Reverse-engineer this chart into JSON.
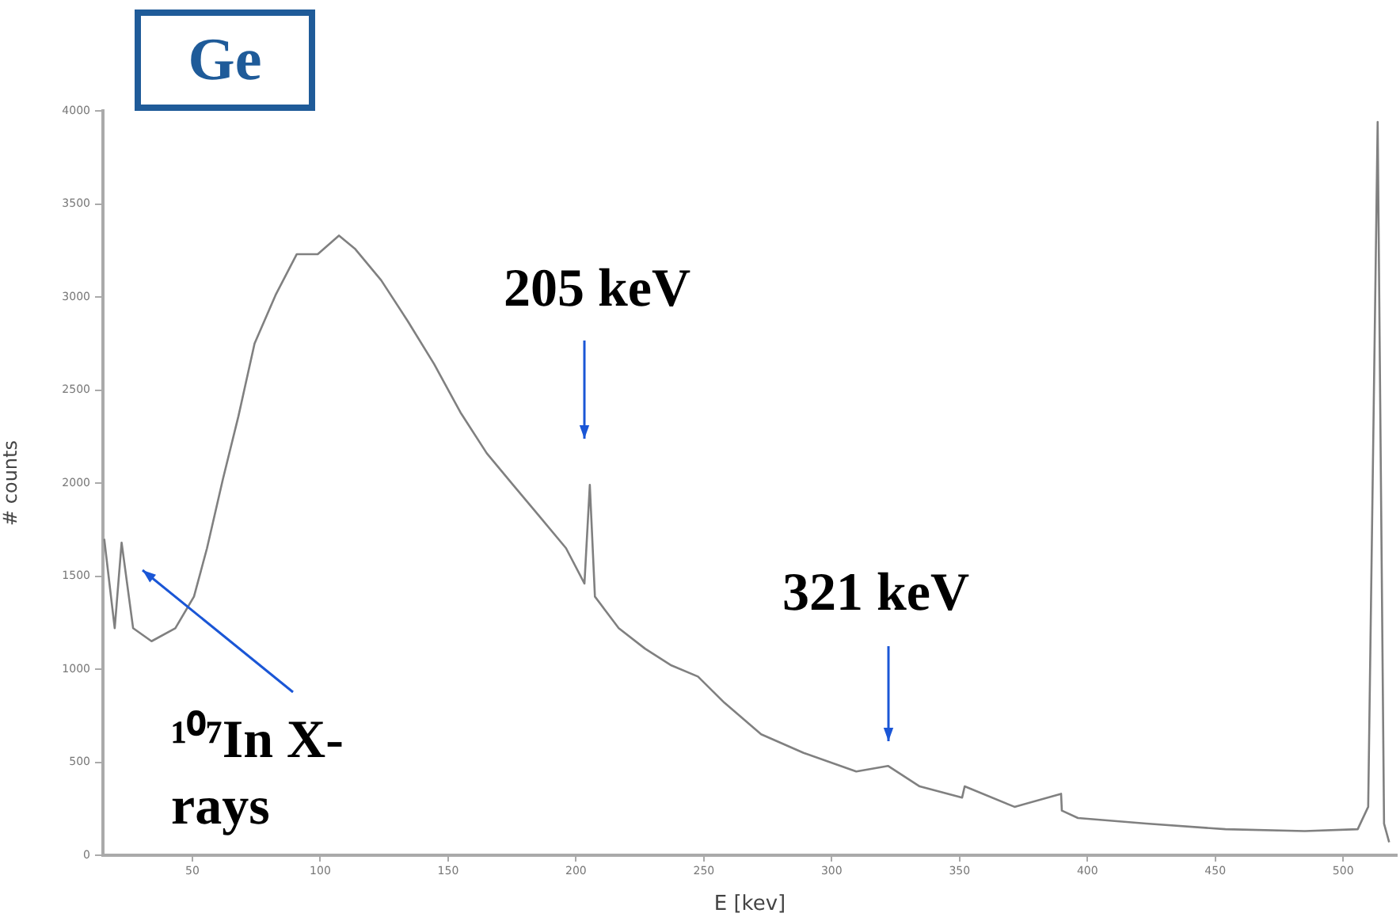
{
  "chart_data": {
    "type": "line",
    "title": "Ge",
    "xlabel": "E [kev]",
    "ylabel": "# counts",
    "color": "#808080",
    "grid": false,
    "legend": false,
    "marker": "none",
    "line_style": "solid",
    "xlim": [
      15,
      521
    ],
    "xticks": [
      50,
      100,
      150,
      200,
      250,
      300,
      350,
      400,
      450,
      500
    ],
    "ylim": [
      0,
      4000
    ],
    "yticks": [
      0,
      500,
      1000,
      1500,
      2000,
      2500,
      3000,
      3500,
      4000
    ],
    "x": [
      15.5,
      19.6,
      22.3,
      26.8,
      34,
      43.3,
      50.6,
      55.7,
      61.9,
      68,
      74.3,
      82.5,
      90.8,
      99,
      107.3,
      113.5,
      123.8,
      134.2,
      144.5,
      154.8,
      165.1,
      175.4,
      185.8,
      196.1,
      203.3,
      205.4,
      207.4,
      216.7,
      227,
      237.3,
      247.7,
      258,
      272.4,
      289,
      309.6,
      322,
      334.4,
      351,
      352,
      371.5,
      389.7,
      390,
      396.3,
      423,
      454,
      485,
      505.7,
      509.8,
      513.5,
      516,
      518
    ],
    "values": [
      1700,
      1220,
      1680,
      1220,
      1150,
      1220,
      1390,
      1650,
      2020,
      2360,
      2750,
      3010,
      3230,
      3230,
      3330,
      3260,
      3090,
      2870,
      2640,
      2380,
      2160,
      1990,
      1820,
      1650,
      1460,
      1990,
      1390,
      1220,
      1110,
      1020,
      960,
      820,
      650,
      550,
      450,
      480,
      370,
      310,
      370,
      260,
      330,
      240,
      200,
      170,
      140,
      130,
      140,
      260,
      3940,
      170,
      70
    ],
    "annotations": [
      "205 keV",
      "321 keV",
      "¹⁰⁷In X-rays"
    ]
  }
}
